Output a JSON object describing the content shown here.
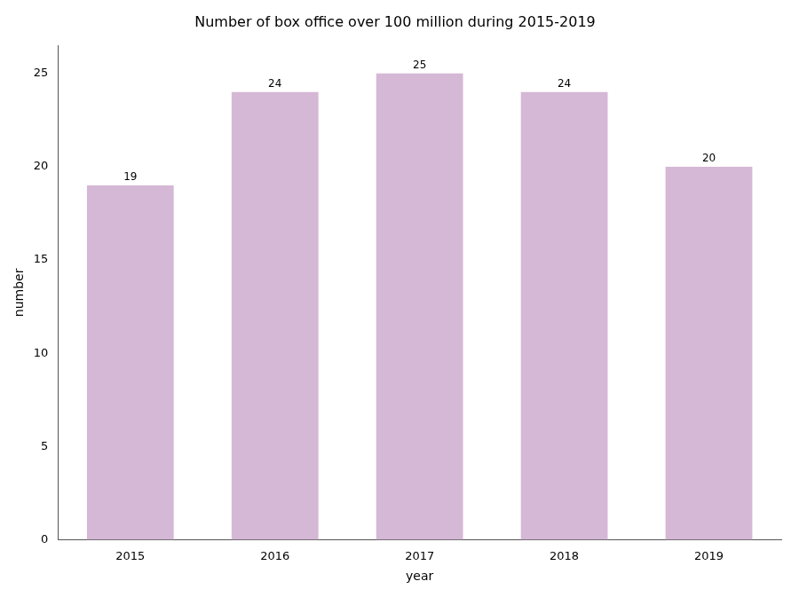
{
  "chart_data": {
    "type": "bar",
    "title": "Number of box office over 100 million during 2015-2019",
    "xlabel": "year",
    "ylabel": "number",
    "categories": [
      "2015",
      "2016",
      "2017",
      "2018",
      "2019"
    ],
    "values": [
      19,
      24,
      25,
      24,
      20
    ],
    "color": "#d5b8d5",
    "ylim": [
      0,
      26.5
    ],
    "yticks": [
      0,
      5,
      10,
      15,
      20,
      25
    ],
    "grid": false,
    "data_labels": true
  }
}
